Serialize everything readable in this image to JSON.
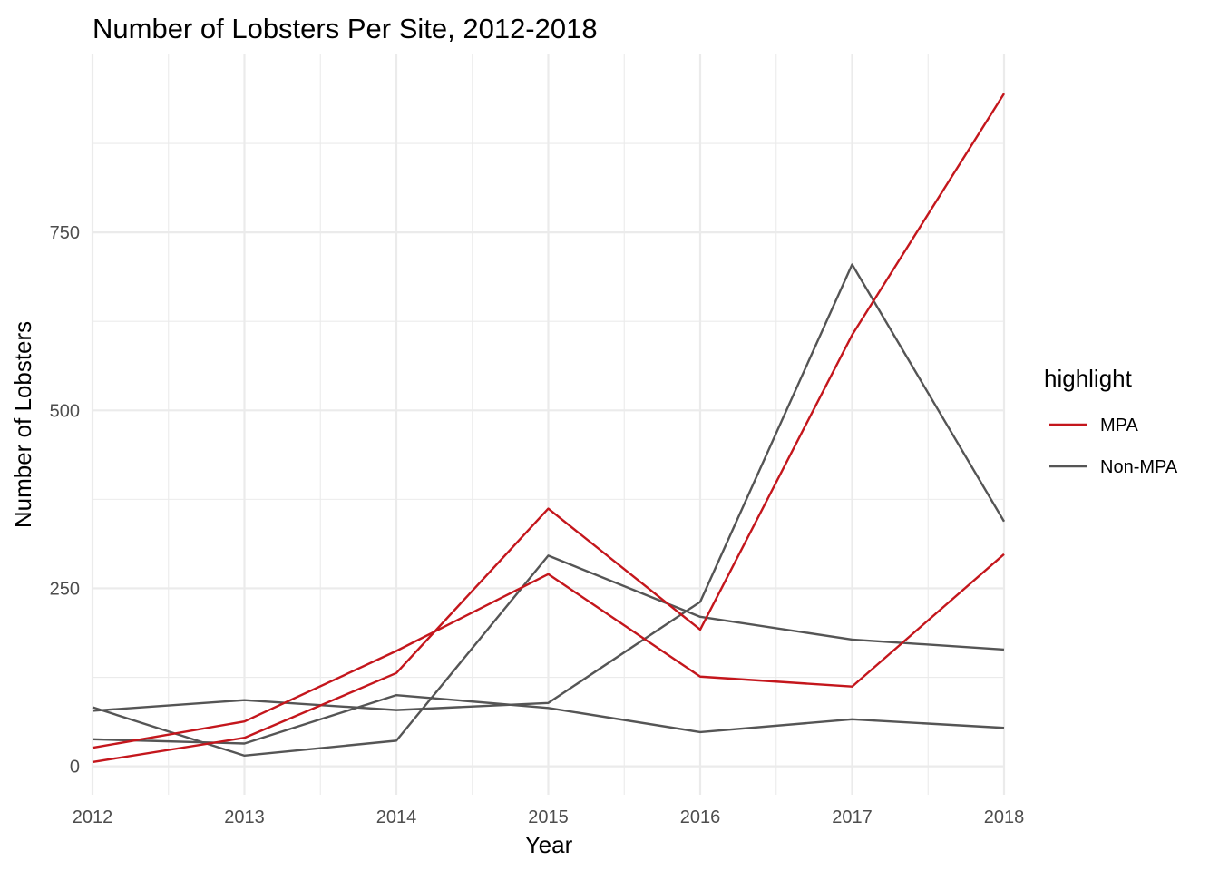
{
  "chart_data": {
    "type": "line",
    "title": "Number of Lobsters Per Site, 2012-2018",
    "xlabel": "Year",
    "ylabel": "Number of Lobsters",
    "x": [
      2012,
      2013,
      2014,
      2015,
      2016,
      2017,
      2018
    ],
    "x_ticks": [
      "2012",
      "2013",
      "2014",
      "2015",
      "2016",
      "2017",
      "2018"
    ],
    "y_ticks": [
      0,
      250,
      500,
      750
    ],
    "xlim": [
      2012,
      2018
    ],
    "ylim": [
      -40,
      1000
    ],
    "grid": true,
    "legend": {
      "title": "highlight",
      "placement": "right",
      "entries": [
        {
          "label": "MPA",
          "color": "#c4161c"
        },
        {
          "label": "Non-MPA",
          "color": "#555555"
        }
      ]
    },
    "series": [
      {
        "group": "MPA",
        "color": "#c4161c",
        "values": [
          6,
          40,
          131,
          362,
          192,
          606,
          945
        ]
      },
      {
        "group": "MPA",
        "color": "#c4161c",
        "values": [
          26,
          63,
          162,
          270,
          126,
          112,
          298
        ]
      },
      {
        "group": "Non-MPA",
        "color": "#555555",
        "values": [
          83,
          15,
          36,
          296,
          210,
          178,
          164
        ]
      },
      {
        "group": "Non-MPA",
        "color": "#555555",
        "values": [
          38,
          32,
          100,
          82,
          48,
          66,
          54
        ]
      },
      {
        "group": "Non-MPA",
        "color": "#555555",
        "values": [
          78,
          93,
          79,
          89,
          231,
          705,
          344
        ]
      }
    ]
  }
}
